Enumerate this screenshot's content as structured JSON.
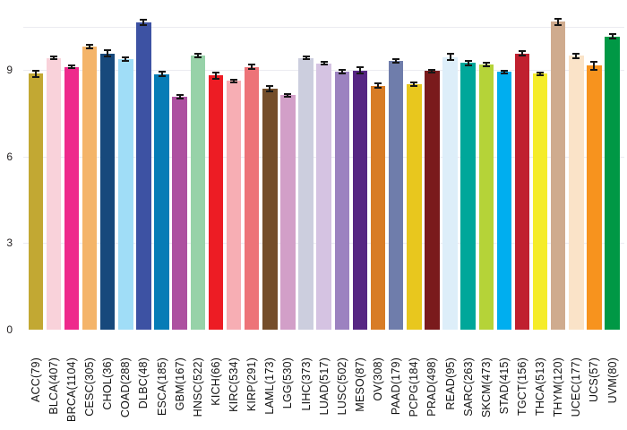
{
  "chart_data": {
    "type": "bar",
    "title": "",
    "xlabel": "",
    "ylabel": "",
    "legend": false,
    "grid": true,
    "ylim": [
      0,
      11.4
    ],
    "y_ticks": [
      0,
      3,
      6,
      9
    ],
    "gridline_values": [
      3,
      6,
      9,
      10.5
    ],
    "error_bar_color": "#161616",
    "axis_text_color": "#231f20",
    "categories": [
      "ACC(79)",
      "BLCA(407)",
      "BRCA(1104)",
      "CESC(305)",
      "CHOL(36)",
      "COAD(288)",
      "DLBC(48)",
      "ESCA(185)",
      "GBM(167)",
      "HNSC(522)",
      "KICH(66)",
      "KIRC(534)",
      "KIRP(291)",
      "LAML(173)",
      "LGG(530)",
      "LIHC(373)",
      "LUAD(517)",
      "LUSC(502)",
      "MESO(87)",
      "OV(308)",
      "PAAD(179)",
      "PCPG(184)",
      "PRAD(498)",
      "READ(95)",
      "SARC(263)",
      "SKCM(473)",
      "STAD(415)",
      "TGCT(156)",
      "THCA(513)",
      "THYM(120)",
      "UCEC(177)",
      "UCS(57)",
      "UVM(80)"
    ],
    "values": [
      8.87,
      9.42,
      9.11,
      9.81,
      9.58,
      9.38,
      10.65,
      8.86,
      8.08,
      9.5,
      8.81,
      8.62,
      9.11,
      8.36,
      8.13,
      9.42,
      9.23,
      8.95,
      8.99,
      8.45,
      9.33,
      8.51,
      8.97,
      9.45,
      9.24,
      9.2,
      8.94,
      9.58,
      8.87,
      10.67,
      9.49,
      9.15,
      10.16
    ],
    "errors": [
      0.12,
      0.05,
      0.04,
      0.06,
      0.12,
      0.05,
      0.1,
      0.07,
      0.06,
      0.05,
      0.1,
      0.05,
      0.07,
      0.09,
      0.05,
      0.05,
      0.05,
      0.06,
      0.1,
      0.08,
      0.06,
      0.07,
      0.05,
      0.1,
      0.07,
      0.06,
      0.05,
      0.08,
      0.05,
      0.11,
      0.08,
      0.15,
      0.08
    ],
    "colors": [
      "#c2a833",
      "#f9d2da",
      "#ee2a8c",
      "#f4b469",
      "#17497c",
      "#a0ddf7",
      "#3d52a3",
      "#077cb6",
      "#ad50a0",
      "#97d2a8",
      "#ed1c24",
      "#f7aeb4",
      "#ed7378",
      "#744e2a",
      "#d29fc8",
      "#cccede",
      "#d5c3e2",
      "#9c82c0",
      "#562683",
      "#d87c26",
      "#6f7dab",
      "#e8c71e",
      "#7a1a1c",
      "#ddeef9",
      "#00a79a",
      "#b5d338",
      "#00aeef",
      "#c0202f",
      "#f5ec2a",
      "#cfab8e",
      "#fae3c8",
      "#f7931e",
      "#009845"
    ]
  }
}
